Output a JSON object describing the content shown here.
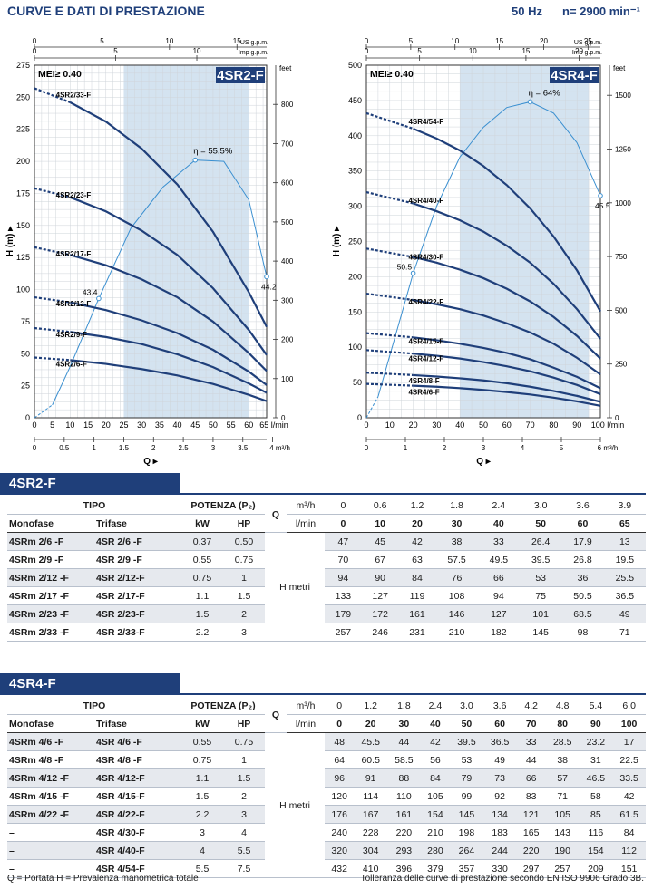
{
  "header": {
    "title": "CURVE E DATI DI PRESTAZIONE",
    "freq": "50 Hz",
    "speed": "n= 2900 min⁻¹"
  },
  "charts": [
    {
      "id": "4SR2",
      "model": "4SR2-F",
      "mei": "MEI≥ 0.40",
      "eff_label": "η = 55.5%",
      "eff_start_label": "43.4",
      "eff_end_label": "44.2",
      "y_label": "H (m)",
      "x_label": "Q",
      "y_ticks": [
        "0",
        "25",
        "50",
        "75",
        "100",
        "125",
        "150",
        "175",
        "200",
        "225",
        "250",
        "275"
      ],
      "x_ticks": [
        "0",
        "5",
        "10",
        "15",
        "20",
        "25",
        "30",
        "35",
        "40",
        "45",
        "50",
        "55",
        "60",
        "65 l/min"
      ],
      "m3h_ticks": [
        "0",
        "0.5",
        "1",
        "1.5",
        "2",
        "2.5",
        "3",
        "3.5",
        "4 m³/h"
      ],
      "usgpm_ticks": [
        "0",
        "5",
        "10",
        "15"
      ],
      "usgpm_unit": "US g.p.m.",
      "impgpm_ticks": [
        "0",
        "5",
        "10"
      ],
      "impgpm_unit": "Imp g.p.m.",
      "feet_ticks": [
        "0",
        "100",
        "200",
        "300",
        "400",
        "500",
        "600",
        "700",
        "800"
      ],
      "feet_unit": "feet"
    },
    {
      "id": "4SR4",
      "model": "4SR4-F",
      "mei": "MEI≥ 0.40",
      "eff_label": "η = 64%",
      "eff_start_label": "50.5",
      "eff_end_label": "45.5",
      "y_label": "H (m)",
      "x_label": "Q",
      "y_ticks": [
        "0",
        "50",
        "100",
        "150",
        "200",
        "250",
        "300",
        "350",
        "400",
        "450",
        "500"
      ],
      "x_ticks": [
        "0",
        "10",
        "20",
        "30",
        "40",
        "50",
        "60",
        "70",
        "80",
        "90",
        "100 l/min"
      ],
      "m3h_ticks": [
        "0",
        "1",
        "2",
        "3",
        "4",
        "5",
        "6 m³/h"
      ],
      "usgpm_ticks": [
        "0",
        "5",
        "10",
        "15",
        "20",
        "25"
      ],
      "usgpm_unit": "US g.p.m.",
      "impgpm_ticks": [
        "0",
        "5",
        "10",
        "15",
        "20"
      ],
      "impgpm_unit": "Imp g.p.m.",
      "feet_ticks": [
        "0",
        "250",
        "500",
        "750",
        "1000",
        "1250",
        "1500"
      ],
      "feet_unit": "feet"
    }
  ],
  "chart_data": [
    {
      "type": "line",
      "title": "4SR2-F",
      "xlabel": "Q (l/min)",
      "ylabel": "H (m)",
      "xlim": [
        0,
        65
      ],
      "ylim": [
        0,
        275
      ],
      "grid": true,
      "x": [
        0,
        10,
        20,
        30,
        40,
        50,
        60,
        65
      ],
      "series": [
        {
          "name": "4SR2/6-F",
          "values": [
            47,
            45,
            42,
            38,
            33,
            26.4,
            17.9,
            13
          ]
        },
        {
          "name": "4SR2/9-F",
          "values": [
            70,
            67,
            63,
            57.5,
            49.5,
            39.5,
            26.8,
            19.5
          ]
        },
        {
          "name": "4SR2/12-F",
          "values": [
            94,
            90,
            84,
            76,
            66,
            53,
            36,
            25.5
          ]
        },
        {
          "name": "4SR2/17-F",
          "values": [
            133,
            127,
            119,
            108,
            94,
            75,
            50.5,
            36.5
          ]
        },
        {
          "name": "4SR2/23-F",
          "values": [
            179,
            172,
            161,
            146,
            127,
            101,
            68.5,
            49
          ]
        },
        {
          "name": "4SR2/33-F",
          "values": [
            257,
            246,
            231,
            210,
            182,
            145,
            98,
            71
          ]
        }
      ]
    },
    {
      "type": "line",
      "title": "4SR4-F",
      "xlabel": "Q (l/min)",
      "ylabel": "H (m)",
      "xlim": [
        0,
        100
      ],
      "ylim": [
        0,
        500
      ],
      "grid": true,
      "x": [
        0,
        20,
        30,
        40,
        50,
        60,
        70,
        80,
        90,
        100
      ],
      "series": [
        {
          "name": "4SR4/6-F",
          "values": [
            48,
            45.5,
            44,
            42,
            39.5,
            36.5,
            33,
            28.5,
            23.2,
            17
          ]
        },
        {
          "name": "4SR4/8-F",
          "values": [
            64,
            60.5,
            58.5,
            56,
            53,
            49,
            44,
            38,
            31,
            22.5
          ]
        },
        {
          "name": "4SR4/12-F",
          "values": [
            96,
            91,
            88,
            84,
            79,
            73,
            66,
            57,
            46.5,
            33.5
          ]
        },
        {
          "name": "4SR4/15-F",
          "values": [
            120,
            114,
            110,
            105,
            99,
            92,
            83,
            71,
            58,
            42
          ]
        },
        {
          "name": "4SR4/22-F",
          "values": [
            176,
            167,
            161,
            154,
            145,
            134,
            121,
            105,
            85,
            61.5
          ]
        },
        {
          "name": "4SR4/30-F",
          "values": [
            240,
            228,
            220,
            210,
            198,
            183,
            165,
            143,
            116,
            84
          ]
        },
        {
          "name": "4SR4/40-F",
          "values": [
            320,
            304,
            293,
            280,
            264,
            244,
            220,
            190,
            154,
            112
          ]
        },
        {
          "name": "4SR4/54-F",
          "values": [
            432,
            410,
            396,
            379,
            357,
            330,
            297,
            257,
            209,
            151
          ]
        }
      ]
    }
  ],
  "tables": [
    {
      "name": "4SR2-F",
      "hdr": {
        "tipo": "TIPO",
        "potenza": "POTENZA (P₂)",
        "mono": "Monofase",
        "tri": "Trifase",
        "kw": "kW",
        "hp": "HP",
        "q": "Q",
        "m3h": "m³/h",
        "lmin": "l/min",
        "hmetri": "H metri"
      },
      "m3h": [
        "0",
        "0.6",
        "1.2",
        "1.8",
        "2.4",
        "3.0",
        "3.6",
        "3.9"
      ],
      "lmin": [
        "0",
        "10",
        "20",
        "30",
        "40",
        "50",
        "60",
        "65"
      ],
      "rows": [
        {
          "mono": "4SRm 2/6  -F",
          "tri": "4SR 2/6   -F",
          "kw": "0.37",
          "hp": "0.50",
          "h": [
            "47",
            "45",
            "42",
            "38",
            "33",
            "26.4",
            "17.9",
            "13"
          ]
        },
        {
          "mono": "4SRm 2/9  -F",
          "tri": "4SR 2/9   -F",
          "kw": "0.55",
          "hp": "0.75",
          "h": [
            "70",
            "67",
            "63",
            "57.5",
            "49.5",
            "39.5",
            "26.8",
            "19.5"
          ]
        },
        {
          "mono": "4SRm 2/12 -F",
          "tri": "4SR 2/12-F",
          "kw": "0.75",
          "hp": "1",
          "h": [
            "94",
            "90",
            "84",
            "76",
            "66",
            "53",
            "36",
            "25.5"
          ]
        },
        {
          "mono": "4SRm 2/17 -F",
          "tri": "4SR 2/17-F",
          "kw": "1.1",
          "hp": "1.5",
          "h": [
            "133",
            "127",
            "119",
            "108",
            "94",
            "75",
            "50.5",
            "36.5"
          ]
        },
        {
          "mono": "4SRm 2/23 -F",
          "tri": "4SR 2/23-F",
          "kw": "1.5",
          "hp": "2",
          "h": [
            "179",
            "172",
            "161",
            "146",
            "127",
            "101",
            "68.5",
            "49"
          ]
        },
        {
          "mono": "4SRm 2/33 -F",
          "tri": "4SR 2/33-F",
          "kw": "2.2",
          "hp": "3",
          "h": [
            "257",
            "246",
            "231",
            "210",
            "182",
            "145",
            "98",
            "71"
          ]
        }
      ]
    },
    {
      "name": "4SR4-F",
      "hdr": {
        "tipo": "TIPO",
        "potenza": "POTENZA (P₂)",
        "mono": "Monofase",
        "tri": "Trifase",
        "kw": "kW",
        "hp": "HP",
        "q": "Q",
        "m3h": "m³/h",
        "lmin": "l/min",
        "hmetri": "H metri"
      },
      "m3h": [
        "0",
        "1.2",
        "1.8",
        "2.4",
        "3.0",
        "3.6",
        "4.2",
        "4.8",
        "5.4",
        "6.0"
      ],
      "lmin": [
        "0",
        "20",
        "30",
        "40",
        "50",
        "60",
        "70",
        "80",
        "90",
        "100"
      ],
      "rows": [
        {
          "mono": "4SRm 4/6  -F",
          "tri": "4SR 4/6   -F",
          "kw": "0.55",
          "hp": "0.75",
          "h": [
            "48",
            "45.5",
            "44",
            "42",
            "39.5",
            "36.5",
            "33",
            "28.5",
            "23.2",
            "17"
          ]
        },
        {
          "mono": "4SRm 4/8  -F",
          "tri": "4SR 4/8   -F",
          "kw": "0.75",
          "hp": "1",
          "h": [
            "64",
            "60.5",
            "58.5",
            "56",
            "53",
            "49",
            "44",
            "38",
            "31",
            "22.5"
          ]
        },
        {
          "mono": "4SRm 4/12 -F",
          "tri": "4SR 4/12-F",
          "kw": "1.1",
          "hp": "1.5",
          "h": [
            "96",
            "91",
            "88",
            "84",
            "79",
            "73",
            "66",
            "57",
            "46.5",
            "33.5"
          ]
        },
        {
          "mono": "4SRm 4/15 -F",
          "tri": "4SR 4/15-F",
          "kw": "1.5",
          "hp": "2",
          "h": [
            "120",
            "114",
            "110",
            "105",
            "99",
            "92",
            "83",
            "71",
            "58",
            "42"
          ]
        },
        {
          "mono": "4SRm 4/22 -F",
          "tri": "4SR 4/22-F",
          "kw": "2.2",
          "hp": "3",
          "h": [
            "176",
            "167",
            "161",
            "154",
            "145",
            "134",
            "121",
            "105",
            "85",
            "61.5"
          ]
        },
        {
          "mono": "–",
          "tri": "4SR 4/30-F",
          "kw": "3",
          "hp": "4",
          "h": [
            "240",
            "228",
            "220",
            "210",
            "198",
            "183",
            "165",
            "143",
            "116",
            "84"
          ]
        },
        {
          "mono": "–",
          "tri": "4SR 4/40-F",
          "kw": "4",
          "hp": "5.5",
          "h": [
            "320",
            "304",
            "293",
            "280",
            "264",
            "244",
            "220",
            "190",
            "154",
            "112"
          ]
        },
        {
          "mono": "–",
          "tri": "4SR 4/54-F",
          "kw": "5.5",
          "hp": "7.5",
          "h": [
            "432",
            "410",
            "396",
            "379",
            "357",
            "330",
            "297",
            "257",
            "209",
            "151"
          ]
        }
      ]
    }
  ],
  "footer": {
    "left": "Q = Portata    H = Prevalenza manometrica totale",
    "right": "Tolleranza delle curve di prestazione secondo EN ISO 9906 Grado 3B."
  }
}
